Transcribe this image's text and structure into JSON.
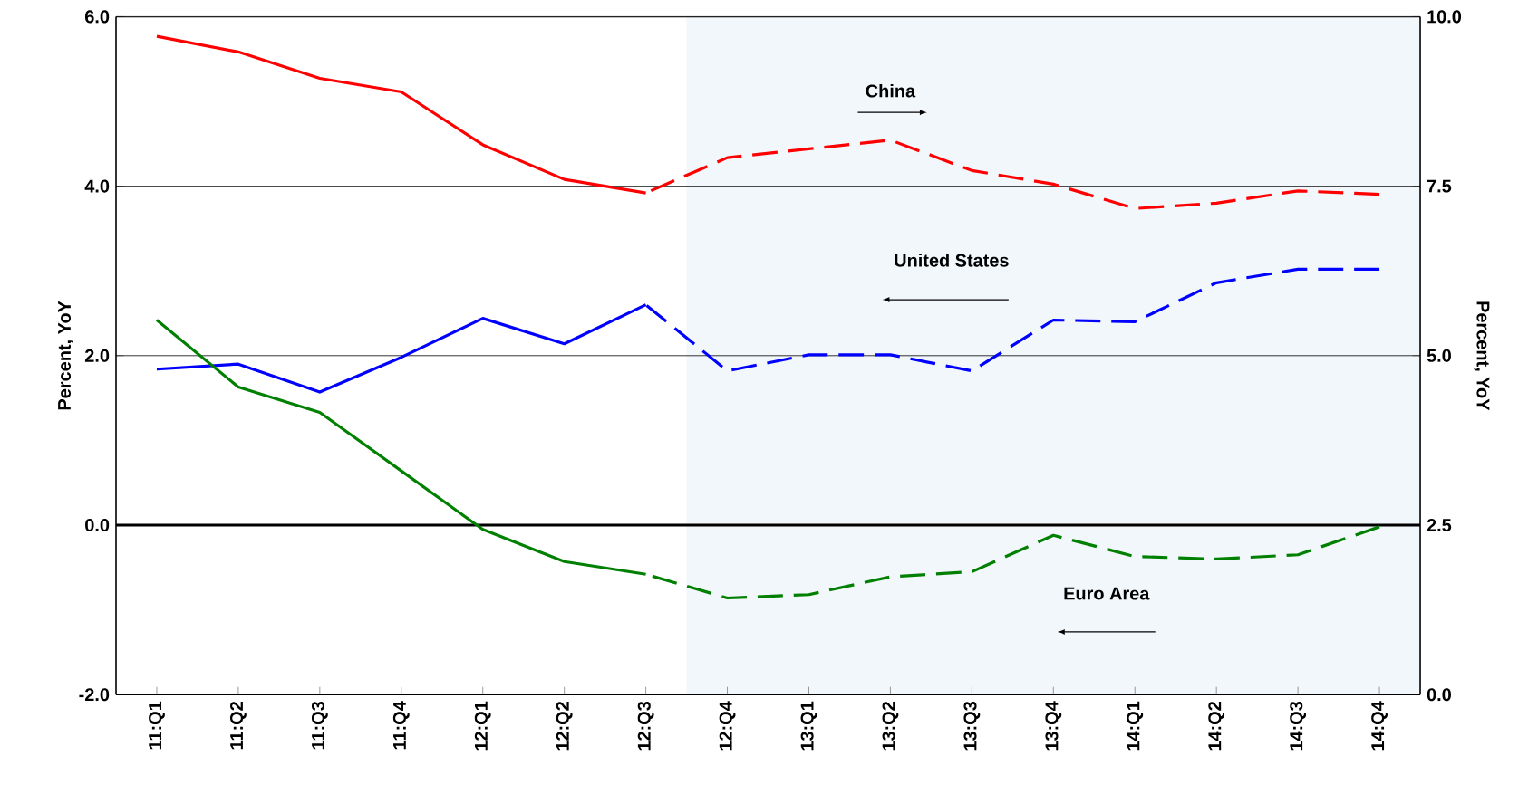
{
  "chart_data": {
    "type": "line",
    "categories": [
      "11:Q1",
      "11:Q2",
      "11:Q3",
      "11:Q4",
      "12:Q1",
      "12:Q2",
      "12:Q3",
      "12:Q4",
      "13:Q1",
      "13:Q2",
      "13:Q3",
      "13:Q4",
      "14:Q1",
      "14:Q2",
      "14:Q3",
      "14:Q4"
    ],
    "series": [
      {
        "name": "China",
        "color": "#ff0000",
        "axis": "y2",
        "line_style": "solid",
        "values": [
          9.71,
          9.48,
          9.09,
          8.89,
          8.11,
          7.6,
          7.4,
          null,
          null,
          null,
          null,
          null,
          null,
          null,
          null,
          null
        ]
      },
      {
        "color": "#ff0000",
        "axis": "y2",
        "line_style": "dashed",
        "values": [
          null,
          null,
          null,
          null,
          null,
          null,
          7.4,
          7.92,
          8.05,
          8.18,
          7.73,
          7.53,
          7.17,
          7.25,
          7.43,
          7.38
        ]
      },
      {
        "name": "United States",
        "color": "#0000ff",
        "axis": "y",
        "line_style": "solid",
        "values": [
          1.84,
          1.9,
          1.57,
          1.98,
          2.44,
          2.14,
          2.6,
          null,
          null,
          null,
          null,
          null,
          null,
          null,
          null,
          null
        ]
      },
      {
        "color": "#0000ff",
        "axis": "y",
        "line_style": "dashed",
        "values": [
          null,
          null,
          null,
          null,
          null,
          null,
          2.6,
          1.82,
          2.01,
          2.01,
          1.82,
          2.42,
          2.4,
          2.86,
          3.02,
          3.02
        ]
      },
      {
        "name": "Euro Area",
        "color": "#008000",
        "axis": "y",
        "line_style": "solid",
        "values": [
          2.42,
          1.63,
          1.33,
          0.64,
          -0.05,
          -0.43,
          -0.58,
          null,
          null,
          null,
          null,
          null,
          null,
          null,
          null,
          null
        ]
      },
      {
        "color": "#008000",
        "axis": "y",
        "line_style": "dashed",
        "values": [
          null,
          null,
          null,
          null,
          null,
          null,
          -0.58,
          -0.86,
          -0.82,
          -0.61,
          -0.55,
          -0.12,
          -0.37,
          -0.4,
          -0.35,
          -0.02
        ]
      }
    ],
    "ylabel": "Percent, YoY",
    "y2label": "Percent, YoY",
    "ylim": [
      -2,
      6
    ],
    "yticks": [
      {
        "value": -2,
        "label": "-2.0"
      },
      {
        "value": 0,
        "label": "0.0"
      },
      {
        "value": 2,
        "label": "2.0"
      },
      {
        "value": 4,
        "label": "4.0"
      },
      {
        "value": 6,
        "label": "6.0"
      }
    ],
    "y2lim": [
      0,
      10
    ],
    "y2ticks": [
      {
        "value": 0,
        "label": "0.0"
      },
      {
        "value": 2.5,
        "label": "2.5"
      },
      {
        "value": 5,
        "label": "5.0"
      },
      {
        "value": 7.5,
        "label": "7.5"
      },
      {
        "value": 10,
        "label": "10.0"
      }
    ],
    "grid": "y",
    "ref_lines": [
      {
        "axis": "y",
        "value": 0,
        "color": "#000000"
      }
    ],
    "bands": [
      {
        "axis": "x",
        "from": "12:Q4",
        "to": "14:Q4",
        "color": "#f2f7fc"
      }
    ],
    "marker": "none"
  }
}
